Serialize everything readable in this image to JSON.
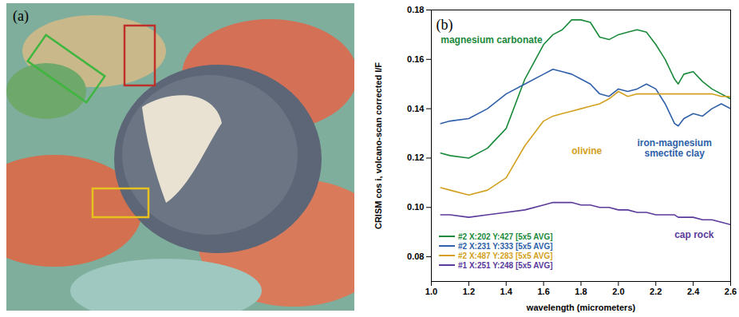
{
  "image_panel": {
    "label": "(a)"
  },
  "chart_data": {
    "type": "line",
    "panel_label": "(b)",
    "x_label": "wavelength (micrometers)",
    "y_label": "CRISM cos i, volcano-scan corrected I/F",
    "xlim": [
      1.0,
      2.6
    ],
    "xticks": [
      {
        "value": 1.0,
        "label": "1.0"
      },
      {
        "value": 1.2,
        "label": "1.2"
      },
      {
        "value": 1.4,
        "label": "1.4"
      },
      {
        "value": 1.6,
        "label": "1.6"
      },
      {
        "value": 1.8,
        "label": "1.8"
      },
      {
        "value": 2.0,
        "label": "2.0"
      },
      {
        "value": 2.2,
        "label": "2.2"
      },
      {
        "value": 2.4,
        "label": "2.4"
      },
      {
        "value": 2.6,
        "label": "2.6"
      }
    ],
    "ylim": [
      0.07,
      0.18
    ],
    "yticks": [
      0.08,
      {
        "value": 0.1,
        "label": "0.10"
      },
      0.12,
      0.14,
      0.16,
      0.18
    ],
    "legend": "lower left",
    "x": [
      1.05,
      1.1,
      1.2,
      1.3,
      1.4,
      1.5,
      1.6,
      1.65,
      1.7,
      1.75,
      1.8,
      1.85,
      1.9,
      1.95,
      2.0,
      2.05,
      2.1,
      2.15,
      2.2,
      2.25,
      2.3,
      2.32,
      2.35,
      2.4,
      2.45,
      2.5,
      2.55,
      2.6
    ],
    "series": [
      {
        "name": "#2 X:202 Y:427 [5x5 AVG]",
        "color": "#1a8a3a",
        "values": [
          0.122,
          0.121,
          0.12,
          0.124,
          0.132,
          0.152,
          0.166,
          0.17,
          0.172,
          0.176,
          0.176,
          0.175,
          0.169,
          0.168,
          0.17,
          0.171,
          0.172,
          0.171,
          0.166,
          0.16,
          0.152,
          0.15,
          0.154,
          0.155,
          0.151,
          0.148,
          0.146,
          0.144
        ]
      },
      {
        "name": "#2 X:231 Y:333 [5x5 AVG]",
        "color": "#2e5fa8",
        "values": [
          0.134,
          0.135,
          0.136,
          0.14,
          0.146,
          0.15,
          0.154,
          0.156,
          0.155,
          0.154,
          0.152,
          0.15,
          0.146,
          0.145,
          0.148,
          0.147,
          0.148,
          0.15,
          0.148,
          0.142,
          0.134,
          0.133,
          0.136,
          0.138,
          0.137,
          0.14,
          0.142,
          0.14
        ]
      },
      {
        "name": "#2 X:487 Y:283 [5x5 AVG]",
        "color": "#d4a020",
        "values": [
          0.108,
          0.107,
          0.105,
          0.107,
          0.112,
          0.125,
          0.135,
          0.137,
          0.138,
          0.139,
          0.14,
          0.141,
          0.142,
          0.144,
          0.147,
          0.145,
          0.146,
          0.146,
          0.146,
          0.146,
          0.146,
          0.146,
          0.146,
          0.146,
          0.146,
          0.146,
          0.145,
          0.145
        ]
      },
      {
        "name": "#1 X:251 Y:248 [5x5 AVG]",
        "color": "#5a3a9a",
        "values": [
          0.097,
          0.097,
          0.096,
          0.097,
          0.098,
          0.099,
          0.101,
          0.102,
          0.102,
          0.102,
          0.101,
          0.101,
          0.1,
          0.1,
          0.099,
          0.099,
          0.098,
          0.098,
          0.097,
          0.097,
          0.097,
          0.096,
          0.096,
          0.096,
          0.095,
          0.095,
          0.094,
          0.093
        ]
      }
    ],
    "annotations": [
      {
        "text": "magnesium carbonate",
        "x": 1.05,
        "y": 0.168,
        "color": "#1a8a3a"
      },
      {
        "text": "olivine",
        "x": 1.75,
        "y": 0.123,
        "color": "#d4a020"
      },
      {
        "text": "iron-magnesium\nsmectite clay",
        "x": 2.3,
        "y": 0.124,
        "color": "#2e5fa8"
      },
      {
        "text": "cap rock",
        "x": 2.3,
        "y": 0.089,
        "color": "#5a3a9a"
      }
    ]
  }
}
